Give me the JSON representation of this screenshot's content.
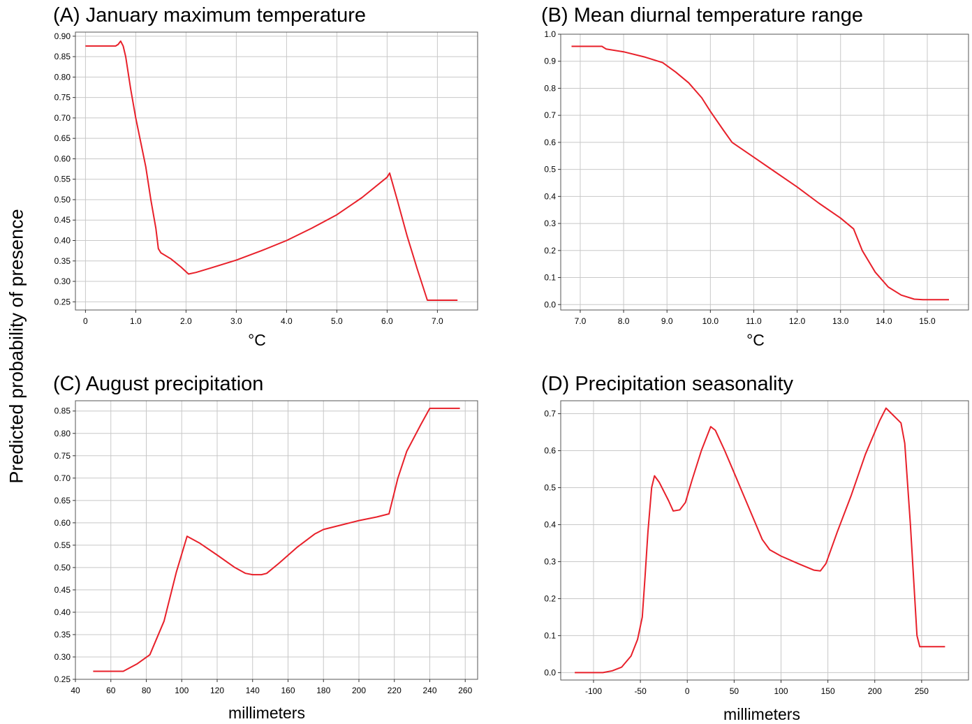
{
  "shared_ylabel": "Predicted probability of presence",
  "chart_data": [
    {
      "type": "line",
      "title": "(A) January maximum temperature",
      "xlabel": "°C",
      "xlim": [
        -0.2,
        7.8
      ],
      "ylim": [
        0.23,
        0.91
      ],
      "xticks": [
        0,
        1.0,
        2.0,
        3.0,
        4.0,
        5.0,
        6.0,
        7.0
      ],
      "xtick_labels": [
        "0",
        "1.0",
        "2.0",
        "3.0",
        "4.0",
        "5.0",
        "6.0",
        "7.0"
      ],
      "yticks": [
        0.25,
        0.3,
        0.35,
        0.4,
        0.45,
        0.5,
        0.55,
        0.6,
        0.65,
        0.7,
        0.75,
        0.8,
        0.85,
        0.9
      ],
      "ytick_labels": [
        "0.25",
        "0.30",
        "0.35",
        "0.40",
        "0.45",
        "0.50",
        "0.55",
        "0.60",
        "0.65",
        "0.70",
        "0.75",
        "0.80",
        "0.85",
        "0.90"
      ],
      "grid": true,
      "line_color": "#e8202a",
      "series": [
        {
          "x": [
            0,
            0.6,
            0.65,
            0.7,
            0.75,
            0.8,
            0.9,
            1.0,
            1.1,
            1.2,
            1.3,
            1.4,
            1.45,
            1.5,
            1.7,
            1.9,
            2.05,
            2.2,
            2.5,
            3.0,
            3.5,
            4.0,
            4.5,
            5.0,
            5.5,
            6.0,
            6.05,
            6.2,
            6.4,
            6.6,
            6.8,
            7.0,
            7.4
          ],
          "y": [
            0.876,
            0.876,
            0.88,
            0.888,
            0.876,
            0.85,
            0.77,
            0.7,
            0.64,
            0.58,
            0.5,
            0.43,
            0.38,
            0.37,
            0.355,
            0.335,
            0.318,
            0.322,
            0.333,
            0.352,
            0.375,
            0.4,
            0.43,
            0.463,
            0.505,
            0.555,
            0.565,
            0.5,
            0.41,
            0.33,
            0.254,
            0.254,
            0.254
          ]
        }
      ]
    },
    {
      "type": "line",
      "title": "(B) Mean diurnal temperature range",
      "xlabel": "°C",
      "xlim": [
        6.55,
        15.95
      ],
      "ylim": [
        -0.02,
        1.0
      ],
      "xticks": [
        7.0,
        8.0,
        9.0,
        10.0,
        11.0,
        12.0,
        13.0,
        14.0,
        15.0
      ],
      "xtick_labels": [
        "7.0",
        "8.0",
        "9.0",
        "10.0",
        "11.0",
        "12.0",
        "13.0",
        "14.0",
        "15.0"
      ],
      "yticks": [
        0.0,
        0.1,
        0.2,
        0.3,
        0.4,
        0.5,
        0.6,
        0.7,
        0.8,
        0.9,
        1.0
      ],
      "ytick_labels": [
        "0.0",
        "0.1",
        "0.2",
        "0.3",
        "0.4",
        "0.5",
        "0.6",
        "0.7",
        "0.8",
        "0.9",
        "1.0"
      ],
      "grid": true,
      "line_color": "#e8202a",
      "series": [
        {
          "x": [
            6.8,
            7.5,
            7.6,
            8.0,
            8.5,
            8.9,
            9.2,
            9.5,
            9.8,
            10.0,
            10.3,
            10.5,
            11.0,
            11.5,
            12.0,
            12.5,
            13.0,
            13.3,
            13.5,
            13.8,
            14.1,
            14.4,
            14.7,
            14.9,
            15.5
          ],
          "y": [
            0.955,
            0.955,
            0.945,
            0.935,
            0.915,
            0.895,
            0.86,
            0.82,
            0.765,
            0.715,
            0.645,
            0.6,
            0.545,
            0.49,
            0.435,
            0.375,
            0.32,
            0.28,
            0.2,
            0.12,
            0.065,
            0.035,
            0.02,
            0.018,
            0.018
          ]
        }
      ]
    },
    {
      "type": "line",
      "title": "(C) August precipitation",
      "xlabel": "millimeters",
      "xlim": [
        40,
        267
      ],
      "ylim": [
        0.25,
        0.873
      ],
      "xticks": [
        40,
        60,
        80,
        100,
        120,
        140,
        160,
        180,
        200,
        220,
        240,
        260
      ],
      "xtick_labels": [
        "40",
        "60",
        "80",
        "100",
        "120",
        "140",
        "160",
        "180",
        "200",
        "220",
        "240",
        "260"
      ],
      "yticks": [
        0.25,
        0.3,
        0.35,
        0.4,
        0.45,
        0.5,
        0.55,
        0.6,
        0.65,
        0.7,
        0.75,
        0.8,
        0.85
      ],
      "ytick_labels": [
        "0.25",
        "0.30",
        "0.35",
        "0.40",
        "0.45",
        "0.50",
        "0.55",
        "0.60",
        "0.65",
        "0.70",
        "0.75",
        "0.80",
        "0.85"
      ],
      "grid": true,
      "line_color": "#e8202a",
      "series": [
        {
          "x": [
            50,
            67,
            75,
            82,
            90,
            97,
            103,
            110,
            120,
            130,
            136,
            140,
            145,
            148,
            155,
            165,
            175,
            180,
            190,
            200,
            210,
            217,
            222,
            227,
            235,
            240,
            257
          ],
          "y": [
            0.268,
            0.268,
            0.285,
            0.305,
            0.38,
            0.49,
            0.57,
            0.555,
            0.528,
            0.5,
            0.487,
            0.484,
            0.484,
            0.487,
            0.51,
            0.545,
            0.575,
            0.585,
            0.595,
            0.605,
            0.613,
            0.62,
            0.7,
            0.76,
            0.82,
            0.856,
            0.856
          ]
        }
      ]
    },
    {
      "type": "line",
      "title": "(D) Precipitation seasonality",
      "xlabel": "millimeters",
      "xlim": [
        -135,
        300
      ],
      "ylim": [
        -0.02,
        0.735
      ],
      "xticks": [
        -100,
        -50,
        0,
        50,
        100,
        150,
        200,
        250
      ],
      "xtick_labels": [
        "-100",
        "-50",
        "0",
        "50",
        "100",
        "150",
        "200",
        "250"
      ],
      "yticks": [
        0.0,
        0.1,
        0.2,
        0.3,
        0.4,
        0.5,
        0.6,
        0.7
      ],
      "ytick_labels": [
        "0.0",
        "0.1",
        "0.2",
        "0.3",
        "0.4",
        "0.5",
        "0.6",
        "0.7"
      ],
      "grid": true,
      "line_color": "#e8202a",
      "series": [
        {
          "x": [
            -120,
            -90,
            -80,
            -70,
            -60,
            -53,
            -48,
            -45,
            -42,
            -38,
            -35,
            -30,
            -20,
            -15,
            -8,
            -2,
            5,
            15,
            25,
            30,
            40,
            50,
            60,
            70,
            80,
            88,
            100,
            120,
            135,
            142,
            148,
            160,
            175,
            190,
            205,
            212,
            218,
            228,
            232,
            238,
            245,
            248,
            275
          ],
          "y": [
            0.0,
            0.0,
            0.005,
            0.015,
            0.045,
            0.09,
            0.15,
            0.26,
            0.38,
            0.5,
            0.532,
            0.515,
            0.465,
            0.437,
            0.44,
            0.46,
            0.52,
            0.6,
            0.665,
            0.655,
            0.6,
            0.54,
            0.48,
            0.42,
            0.36,
            0.332,
            0.315,
            0.293,
            0.277,
            0.275,
            0.295,
            0.38,
            0.48,
            0.59,
            0.68,
            0.715,
            0.7,
            0.675,
            0.62,
            0.4,
            0.1,
            0.07,
            0.07
          ]
        }
      ]
    }
  ]
}
